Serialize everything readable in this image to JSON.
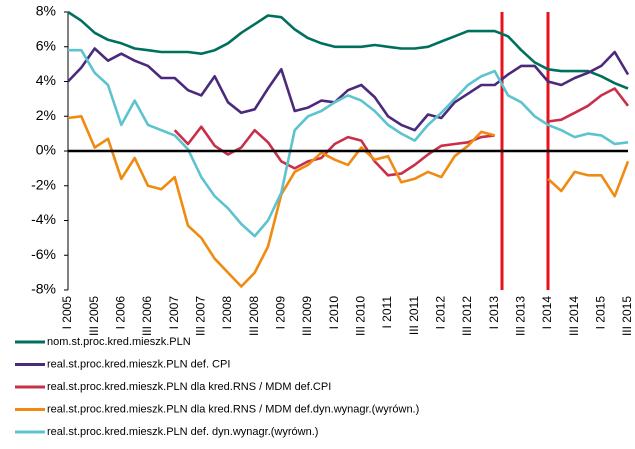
{
  "chart_data": {
    "type": "line",
    "categories": [
      "I 2005",
      null,
      "III 2005",
      null,
      "I 2006",
      null,
      "III 2006",
      null,
      "I 2007",
      null,
      "III 2007",
      null,
      "I 2008",
      null,
      "III 2008",
      null,
      "I 2009",
      null,
      "III 2009",
      null,
      "I 2010",
      null,
      "III 2010",
      null,
      "I 2011",
      null,
      "III 2011",
      null,
      "I 2012",
      null,
      "III 2012",
      null,
      "I 2013",
      null,
      "III 2013",
      null,
      "I 2014",
      null,
      "III 2014",
      null,
      "I 2015",
      null,
      "III 2015"
    ],
    "ylim": [
      -8,
      8
    ],
    "yticks": [
      {
        "value": -8,
        "label": "-8%"
      },
      {
        "value": -6,
        "label": "-6%"
      },
      {
        "value": -4,
        "label": "-4%"
      },
      {
        "value": -2,
        "label": "-2%"
      },
      {
        "value": 0,
        "label": "0%"
      },
      {
        "value": 2,
        "label": "2%"
      },
      {
        "value": 4,
        "label": "4%"
      },
      {
        "value": 6,
        "label": "6%"
      },
      {
        "value": 8,
        "label": "8%"
      }
    ],
    "grid": false,
    "series": [
      {
        "name": "nom.st.proc.kred.mieszk.PLN",
        "color": "#00705e",
        "values": [
          8,
          7.5,
          6.8,
          6.4,
          6.2,
          5.9,
          5.8,
          5.7,
          5.7,
          5.7,
          5.6,
          5.8,
          6.2,
          6.8,
          7.3,
          7.8,
          7.7,
          7,
          6.5,
          6.2,
          6,
          6,
          6,
          6.1,
          6,
          5.9,
          5.9,
          6,
          6.3,
          6.6,
          6.9,
          6.9,
          6.9,
          6.6,
          5.8,
          5.1,
          4.7,
          4.6,
          4.6,
          4.6,
          4.3,
          3.9,
          3.6
        ]
      },
      {
        "name": "real.st.proc.kred.mieszk.PLN def. CPI",
        "color": "#4b2a7b",
        "values": [
          4,
          4.8,
          5.9,
          5.2,
          5.6,
          5.2,
          4.9,
          4.2,
          4.2,
          3.5,
          3.2,
          4.3,
          2.8,
          2.2,
          2.4,
          3.6,
          4.7,
          2.3,
          2.5,
          2.9,
          2.8,
          3.5,
          3.8,
          3.1,
          2,
          1.5,
          1.2,
          2.1,
          1.9,
          2.8,
          3.3,
          3.8,
          3.8,
          4.4,
          4.9,
          4.9,
          4,
          3.8,
          4.2,
          4.5,
          4.9,
          5.7,
          4.4
        ]
      },
      {
        "name": "real.st.proc.kred.mieszk.PLN dla kred.RNS / MDM def.CPI",
        "color": "#c8304a",
        "values": [
          null,
          null,
          null,
          null,
          null,
          null,
          null,
          null,
          1.2,
          0.4,
          1.4,
          0.3,
          -0.2,
          0.2,
          1.2,
          0.5,
          -0.6,
          -1.0,
          -0.6,
          -0.4,
          0.4,
          0.8,
          0.6,
          -0.6,
          -1.4,
          -1.3,
          -0.8,
          -0.2,
          0.3,
          0.4,
          0.5,
          0.8,
          0.9,
          null,
          null,
          null,
          1.7,
          1.8,
          2.2,
          2.6,
          3.2,
          3.6,
          2.6
        ]
      },
      {
        "name": "real.st.proc.kred.mieszk.PLN dla kred.RNS / MDM def.dyn.wynagr.(wyrówn.)",
        "color": "#f08a10",
        "values": [
          1.9,
          2,
          0.2,
          0.7,
          -1.6,
          -0.4,
          -2,
          -2.2,
          -1.5,
          -4.3,
          -5,
          -6.2,
          -7,
          -7.8,
          -7,
          -5.5,
          -2.5,
          -1.2,
          -0.8,
          -0.1,
          -0.5,
          -0.8,
          0.2,
          -0.5,
          -0.3,
          -1.8,
          -1.6,
          -1.2,
          -1.5,
          -0.3,
          0.3,
          1.1,
          0.9,
          null,
          null,
          null,
          -1.6,
          -2.3,
          -1.2,
          -1.4,
          -1.4,
          -2.6,
          -0.6
        ]
      },
      {
        "name": "real.st.proc.kred.mieszk.PLN def. dyn.wynagr.(wyrówn.)",
        "color": "#5cc3cf",
        "values": [
          5.8,
          5.8,
          4.5,
          3.8,
          1.5,
          2.9,
          1.5,
          1.2,
          0.9,
          0.1,
          -1.5,
          -2.6,
          -3.3,
          -4.2,
          -4.9,
          -4.0,
          -2.4,
          1.2,
          2,
          2.3,
          2.8,
          3.2,
          2.9,
          2.3,
          1.5,
          1.0,
          0.6,
          1.5,
          2.2,
          3,
          3.8,
          4.3,
          4.6,
          3.2,
          2.8,
          2.0,
          1.5,
          1.2,
          0.8,
          1.0,
          0.9,
          0.4,
          0.5
        ]
      }
    ]
  }
}
